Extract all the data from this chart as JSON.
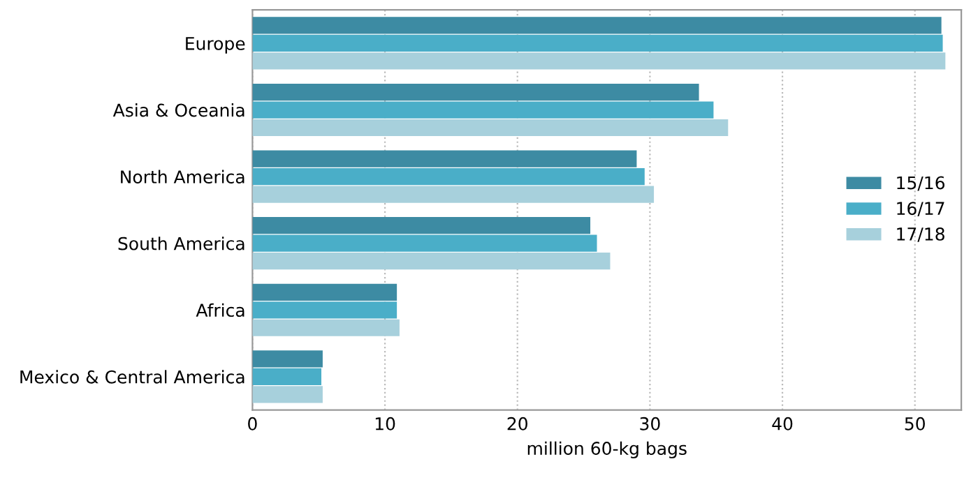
{
  "chart_data": {
    "type": "bar",
    "orientation": "horizontal",
    "categories": [
      "Europe",
      "Asia & Oceania",
      "North America",
      "South America",
      "Africa",
      "Mexico & Central America"
    ],
    "series": [
      {
        "name": "15/16",
        "color": "#3d8ba3",
        "values": [
          52.0,
          33.7,
          29.0,
          25.5,
          10.9,
          5.3
        ]
      },
      {
        "name": "16/17",
        "color": "#4aaec8",
        "values": [
          52.1,
          34.8,
          29.6,
          26.0,
          10.9,
          5.2
        ]
      },
      {
        "name": "17/18",
        "color": "#a7d0dc",
        "values": [
          52.3,
          35.9,
          30.3,
          27.0,
          11.1,
          5.3
        ]
      }
    ],
    "xlabel": "million 60-kg bags",
    "xlim": [
      0,
      53.5
    ],
    "xticks": [
      0,
      10,
      20,
      30,
      40,
      50
    ],
    "grid": "x",
    "legend": "right"
  }
}
